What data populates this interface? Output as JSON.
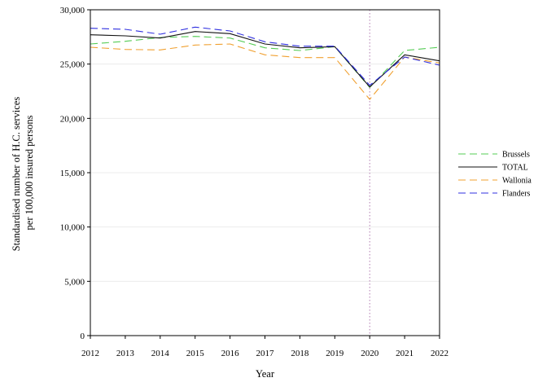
{
  "chart_data": {
    "type": "line",
    "title": "",
    "xlabel": "Year",
    "ylabel_lines": [
      "Standardised number of H.C. services",
      "per 100,000 insured persons"
    ],
    "x": [
      2012,
      2013,
      2014,
      2015,
      2016,
      2017,
      2018,
      2019,
      2020,
      2021,
      2022
    ],
    "x_tick_labels": [
      "2012",
      "2013",
      "2014",
      "2015",
      "2016",
      "2017",
      "2018",
      "2019",
      "2020",
      "2021",
      "2022"
    ],
    "ylim": [
      0,
      30000
    ],
    "y_ticks": [
      0,
      5000,
      10000,
      15000,
      20000,
      25000,
      30000
    ],
    "y_tick_labels": [
      "0",
      "5,000",
      "10,000",
      "15,000",
      "20,000",
      "25,000",
      "30,000"
    ],
    "grid": "horizontal, light",
    "reference_line": {
      "x": 2020,
      "style": "dotted",
      "color": "#b07ab0"
    },
    "legend_position": "right",
    "series": [
      {
        "name": "Brussels",
        "color": "#55cc55",
        "dash": "dashed",
        "values": [
          26850,
          27100,
          27450,
          27550,
          27400,
          26500,
          26250,
          26600,
          22850,
          26250,
          26550
        ]
      },
      {
        "name": "TOTAL",
        "color": "#111111",
        "dash": "solid",
        "values": [
          27700,
          27600,
          27400,
          28000,
          27800,
          26850,
          26500,
          26600,
          22900,
          25850,
          25300
        ]
      },
      {
        "name": "Wallonia",
        "color": "#f0a030",
        "dash": "dashed",
        "values": [
          26550,
          26350,
          26300,
          26750,
          26850,
          25850,
          25600,
          25600,
          21750,
          25650,
          25100
        ]
      },
      {
        "name": "Flanders",
        "color": "#3030e0",
        "dash": "dashed",
        "values": [
          28300,
          28200,
          27750,
          28400,
          28050,
          27050,
          26650,
          26650,
          23050,
          25650,
          24900
        ]
      }
    ]
  }
}
